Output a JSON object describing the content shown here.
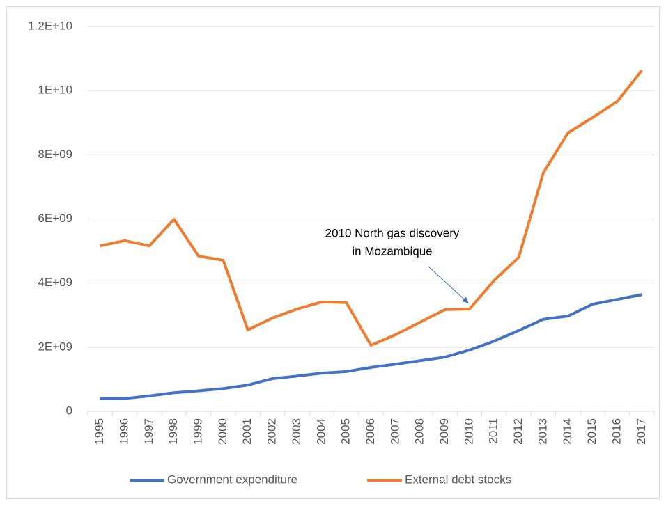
{
  "chart_data": {
    "type": "line",
    "categories": [
      "1995",
      "1996",
      "1997",
      "1998",
      "1999",
      "2000",
      "2001",
      "2002",
      "2003",
      "2004",
      "2005",
      "2006",
      "2007",
      "2008",
      "2009",
      "2010",
      "2011",
      "2012",
      "2013",
      "2014",
      "2015",
      "2016",
      "2017"
    ],
    "series": [
      {
        "name": "Government expenditure",
        "color": "#4472c4",
        "values": [
          390000000,
          400000000,
          480000000,
          580000000,
          640000000,
          710000000,
          820000000,
          1020000000,
          1100000000,
          1190000000,
          1240000000,
          1370000000,
          1470000000,
          1580000000,
          1690000000,
          1910000000,
          2190000000,
          2520000000,
          2870000000,
          2970000000,
          3340000000,
          3490000000,
          3640000000
        ]
      },
      {
        "name": "External debt stocks",
        "color": "#ed7d31",
        "values": [
          5160000000,
          5320000000,
          5160000000,
          5990000000,
          4840000000,
          4710000000,
          2540000000,
          2910000000,
          3190000000,
          3410000000,
          3390000000,
          2060000000,
          2390000000,
          2780000000,
          3170000000,
          3190000000,
          4080000000,
          4800000000,
          7440000000,
          8680000000,
          9160000000,
          9660000000,
          10630000000
        ]
      }
    ],
    "ylim": [
      0,
      12000000000
    ],
    "yticks": [
      0,
      {
        "value": 2000000000,
        "label": "2E+09"
      },
      {
        "value": 4000000000,
        "label": "4E+09"
      },
      {
        "value": 6000000000,
        "label": "6E+09"
      },
      {
        "value": 8000000000,
        "label": "8E+09"
      },
      {
        "value": 10000000000,
        "label": "1E+10"
      },
      {
        "value": 12000000000,
        "label": "1.2E+10"
      }
    ],
    "grid": true,
    "legend": "bottom",
    "annotation": {
      "lines": [
        "2010 North gas discovery",
        "in Mozambique"
      ],
      "category": "2010"
    }
  }
}
